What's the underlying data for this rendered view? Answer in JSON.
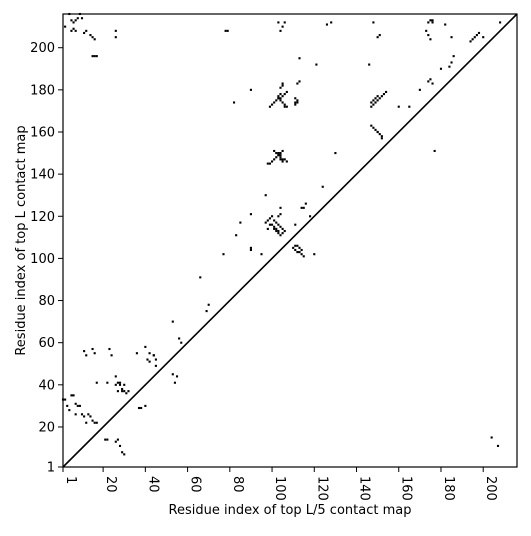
{
  "chart_data": {
    "type": "scatter",
    "xlabel": "Residue index of top L/5 contact map",
    "ylabel": "Residue index of top L contact map",
    "xlim": [
      1,
      216
    ],
    "ylim": [
      1,
      216
    ],
    "grid": false,
    "x_ticks": [
      1,
      20,
      40,
      60,
      80,
      100,
      120,
      140,
      160,
      180,
      200
    ],
    "y_ticks": [
      1,
      20,
      40,
      60,
      80,
      100,
      120,
      140,
      160,
      180,
      200
    ],
    "diagonal": true,
    "marker_color": "#000000",
    "upper_points": [
      [
        28,
        40
      ],
      [
        29,
        38
      ],
      [
        30,
        37
      ],
      [
        36,
        55
      ],
      [
        40,
        58
      ],
      [
        42,
        55
      ],
      [
        44,
        54
      ],
      [
        45,
        49
      ],
      [
        53,
        70
      ],
      [
        56,
        62
      ],
      [
        57,
        60
      ],
      [
        66,
        91
      ],
      [
        77,
        102
      ],
      [
        85,
        117
      ],
      [
        90,
        121
      ],
      [
        97,
        130
      ],
      [
        98,
        145
      ],
      [
        99,
        145
      ],
      [
        100,
        146
      ],
      [
        101,
        147
      ],
      [
        102,
        148
      ],
      [
        103,
        149
      ],
      [
        104,
        150
      ],
      [
        105,
        151
      ],
      [
        99,
        172
      ],
      [
        100,
        173
      ],
      [
        101,
        174
      ],
      [
        102,
        175
      ],
      [
        103,
        176
      ],
      [
        104,
        176
      ],
      [
        105,
        177
      ],
      [
        106,
        178
      ],
      [
        107,
        179
      ],
      [
        104,
        181
      ],
      [
        112,
        183
      ],
      [
        113,
        184
      ],
      [
        121,
        192
      ],
      [
        113,
        195
      ],
      [
        146,
        192
      ],
      [
        150,
        205
      ],
      [
        151,
        206
      ],
      [
        174,
        212
      ],
      [
        175,
        213
      ],
      [
        176,
        213
      ],
      [
        185,
        205
      ],
      [
        103,
        212
      ],
      [
        104,
        208
      ],
      [
        6,
        212
      ],
      [
        7,
        213
      ],
      [
        8,
        214
      ],
      [
        9,
        216
      ],
      [
        10,
        214
      ],
      [
        4,
        216
      ],
      [
        5,
        213
      ],
      [
        2,
        210
      ],
      [
        98,
        114
      ],
      [
        111,
        116
      ],
      [
        124,
        134
      ],
      [
        130,
        150
      ],
      [
        150,
        160
      ],
      [
        160,
        172
      ],
      [
        170,
        180
      ],
      [
        180,
        190
      ],
      [
        186,
        196
      ],
      [
        194,
        203
      ],
      [
        200,
        205
      ],
      [
        114,
        124
      ],
      [
        116,
        126
      ],
      [
        118,
        120
      ],
      [
        83,
        111
      ],
      [
        82,
        174
      ],
      [
        90,
        180
      ],
      [
        111,
        173
      ],
      [
        112,
        174
      ],
      [
        105,
        182
      ],
      [
        105,
        183
      ],
      [
        165,
        172
      ],
      [
        176,
        183
      ],
      [
        184,
        191
      ],
      [
        185,
        193
      ],
      [
        195,
        204
      ],
      [
        196,
        205
      ],
      [
        197,
        206
      ],
      [
        198,
        207
      ],
      [
        208,
        212
      ],
      [
        126,
        211
      ],
      [
        128,
        212
      ],
      [
        148,
        212
      ],
      [
        176,
        212
      ],
      [
        182,
        211
      ],
      [
        106,
        212
      ],
      [
        105,
        210
      ],
      [
        5,
        208
      ],
      [
        6,
        209
      ],
      [
        7,
        208
      ],
      [
        11,
        207
      ],
      [
        12,
        208
      ],
      [
        14,
        206
      ],
      [
        15,
        205
      ],
      [
        16,
        204
      ],
      [
        26,
        208
      ],
      [
        26,
        205
      ],
      [
        15,
        196
      ],
      [
        16,
        196
      ],
      [
        17,
        196
      ],
      [
        78,
        208
      ],
      [
        79,
        208
      ],
      [
        173,
        208
      ],
      [
        174,
        206
      ],
      [
        175,
        204
      ]
    ],
    "lower_points": [
      [
        1,
        33
      ],
      [
        2,
        33
      ],
      [
        3,
        30
      ],
      [
        4,
        28
      ],
      [
        5,
        35
      ],
      [
        6,
        35
      ],
      [
        7,
        31
      ],
      [
        8,
        30
      ],
      [
        9,
        30
      ],
      [
        10,
        26
      ],
      [
        11,
        25
      ],
      [
        12,
        22
      ],
      [
        13,
        26
      ],
      [
        14,
        25
      ],
      [
        15,
        23
      ],
      [
        16,
        22
      ],
      [
        17,
        22
      ],
      [
        7,
        26
      ],
      [
        11,
        56
      ],
      [
        12,
        54
      ],
      [
        15,
        57
      ],
      [
        16,
        55
      ],
      [
        17,
        41
      ],
      [
        21,
        14
      ],
      [
        22,
        14
      ],
      [
        22,
        41
      ],
      [
        23,
        57
      ],
      [
        24,
        54
      ],
      [
        26,
        44
      ],
      [
        26,
        40
      ],
      [
        27,
        41
      ],
      [
        28,
        41
      ],
      [
        27,
        37
      ],
      [
        29,
        37
      ],
      [
        30,
        40
      ],
      [
        32,
        37
      ],
      [
        31,
        36
      ],
      [
        27,
        14
      ],
      [
        26,
        13
      ],
      [
        28,
        11
      ],
      [
        29,
        8
      ],
      [
        30,
        7
      ],
      [
        37,
        29
      ],
      [
        38,
        29
      ],
      [
        40,
        30
      ],
      [
        41,
        52
      ],
      [
        42,
        51
      ],
      [
        44,
        54
      ],
      [
        45,
        52
      ],
      [
        53,
        45
      ],
      [
        54,
        41
      ],
      [
        55,
        44
      ],
      [
        69,
        75
      ],
      [
        70,
        78
      ],
      [
        90,
        104
      ],
      [
        90,
        105
      ],
      [
        95,
        102
      ],
      [
        97,
        117
      ],
      [
        98,
        118
      ],
      [
        99,
        116
      ],
      [
        99,
        119
      ],
      [
        100,
        120
      ],
      [
        100,
        116
      ],
      [
        101,
        115
      ],
      [
        101,
        114
      ],
      [
        101,
        118
      ],
      [
        102,
        114
      ],
      [
        102,
        113
      ],
      [
        103,
        113
      ],
      [
        103,
        112
      ],
      [
        104,
        111
      ],
      [
        105,
        112
      ],
      [
        104,
        121
      ],
      [
        103,
        120
      ],
      [
        102,
        117
      ],
      [
        103,
        116
      ],
      [
        104,
        115
      ],
      [
        105,
        114
      ],
      [
        106,
        113
      ],
      [
        104,
        124
      ],
      [
        110,
        105
      ],
      [
        111,
        104
      ],
      [
        112,
        103
      ],
      [
        113,
        103
      ],
      [
        114,
        102
      ],
      [
        115,
        101
      ],
      [
        115,
        124
      ],
      [
        112,
        106
      ],
      [
        111,
        106
      ],
      [
        113,
        105
      ],
      [
        114,
        104
      ],
      [
        120,
        102
      ],
      [
        101,
        151
      ],
      [
        102,
        150
      ],
      [
        103,
        150
      ],
      [
        104,
        149
      ],
      [
        104,
        148
      ],
      [
        105,
        147
      ],
      [
        106,
        147
      ],
      [
        107,
        146
      ],
      [
        105,
        146
      ],
      [
        104,
        147
      ],
      [
        103,
        149
      ],
      [
        147,
        163
      ],
      [
        148,
        162
      ],
      [
        149,
        161
      ],
      [
        150,
        160
      ],
      [
        151,
        159
      ],
      [
        152,
        158
      ],
      [
        152,
        157
      ],
      [
        177,
        151
      ],
      [
        204,
        15
      ],
      [
        207,
        11
      ],
      [
        103,
        176
      ],
      [
        104,
        175
      ],
      [
        105,
        174
      ],
      [
        106,
        173
      ],
      [
        107,
        172
      ],
      [
        103,
        177
      ],
      [
        104,
        178
      ],
      [
        106,
        172
      ],
      [
        111,
        176
      ],
      [
        112,
        175
      ],
      [
        111,
        174
      ],
      [
        147,
        172
      ],
      [
        148,
        173
      ],
      [
        149,
        174
      ],
      [
        150,
        175
      ],
      [
        151,
        176
      ],
      [
        152,
        177
      ],
      [
        153,
        178
      ],
      [
        154,
        179
      ],
      [
        147,
        174
      ],
      [
        148,
        175
      ],
      [
        149,
        176
      ],
      [
        150,
        177
      ],
      [
        174,
        184
      ],
      [
        175,
        185
      ]
    ]
  }
}
